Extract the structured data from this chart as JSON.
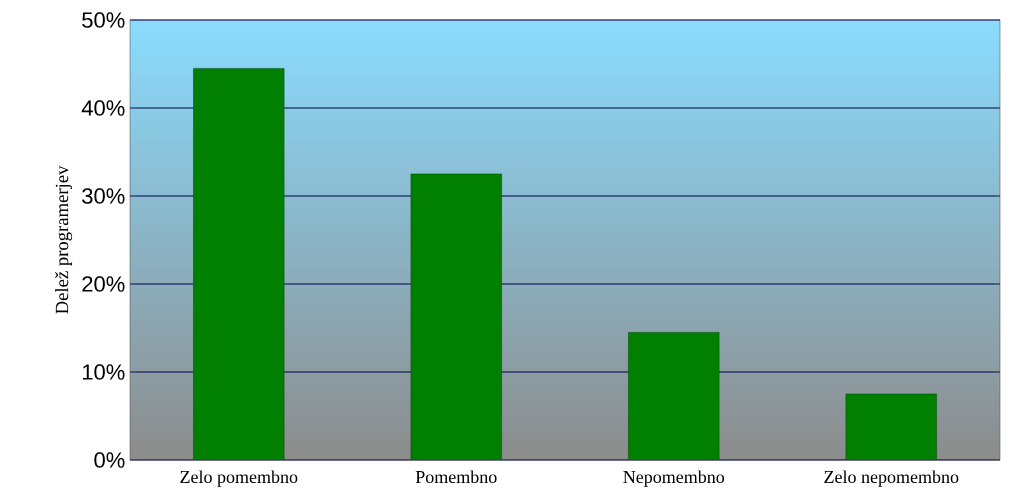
{
  "chart_data": {
    "type": "bar",
    "ylabel": "Delež programerjev",
    "categories": [
      "Zelo pomembno",
      "Pomembno",
      "Nepomembno",
      "Zelo nepomembno"
    ],
    "values": [
      44.5,
      32.5,
      14.5,
      7.5
    ],
    "color": "#007f00",
    "ylim": [
      0,
      50
    ],
    "yticks": [
      {
        "value": 0,
        "label": "0%"
      },
      {
        "value": 10,
        "label": "10%"
      },
      {
        "value": 20,
        "label": "20%"
      },
      {
        "value": 30,
        "label": "30%"
      },
      {
        "value": 40,
        "label": "40%"
      },
      {
        "value": 50,
        "label": "50%"
      }
    ],
    "grid": "y"
  }
}
